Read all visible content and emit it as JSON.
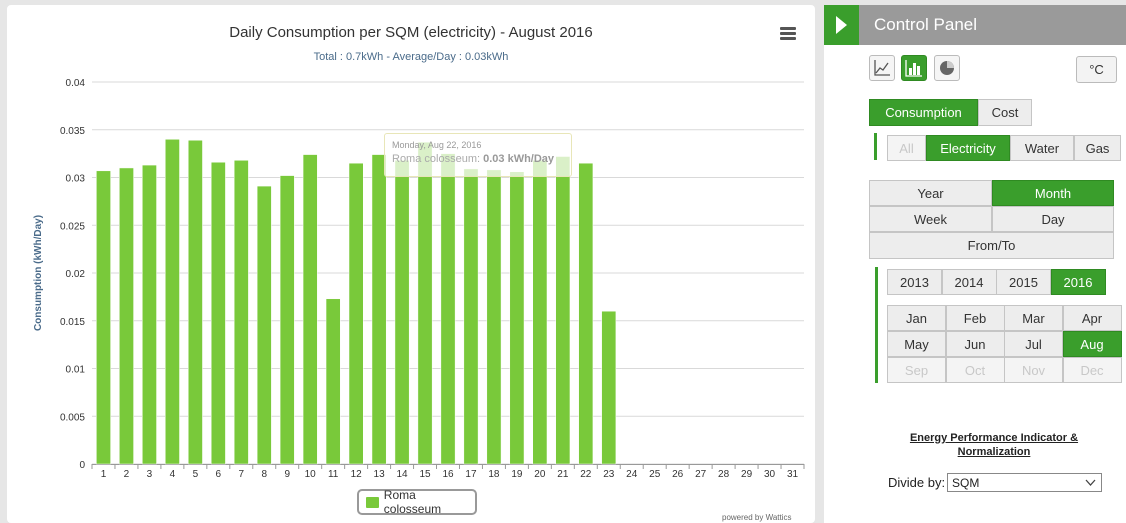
{
  "chart_data": {
    "type": "bar",
    "title": "Daily Consumption per SQM (electricity) - August 2016",
    "subtitle": "Total : 0.7kWh - Average/Day : 0.03kWh",
    "ylabel": "Consumption (kWh/Day)",
    "xlabel": "",
    "categories": [
      "1",
      "2",
      "3",
      "4",
      "5",
      "6",
      "7",
      "8",
      "9",
      "10",
      "11",
      "12",
      "13",
      "14",
      "15",
      "16",
      "17",
      "18",
      "19",
      "20",
      "21",
      "22",
      "23",
      "24",
      "25",
      "26",
      "27",
      "28",
      "29",
      "30",
      "31"
    ],
    "series": [
      {
        "name": "Roma colosseum",
        "values": [
          0.0307,
          0.031,
          0.0313,
          0.034,
          0.0339,
          0.0316,
          0.0318,
          0.0291,
          0.0302,
          0.0324,
          0.0173,
          0.0315,
          0.0324,
          0.0318,
          0.0337,
          0.0325,
          0.0309,
          0.0308,
          0.0306,
          0.0318,
          0.0322,
          0.0315,
          0.016,
          null,
          null,
          null,
          null,
          null,
          null,
          null,
          null
        ]
      }
    ],
    "ylim": [
      0,
      0.04
    ],
    "yticks": [
      "0",
      "0.005",
      "0.01",
      "0.015",
      "0.02",
      "0.025",
      "0.03",
      "0.035",
      "0.04"
    ],
    "grid": true,
    "legend": "bottom-center",
    "bar_color": "#79c93a",
    "tooltip": {
      "day_index": 21,
      "date": "Monday, Aug 22, 2016",
      "series": "Roma colosseum",
      "value": "0.03 kWh/Day"
    }
  },
  "credit": "powered by Wattics",
  "menu_icon": "hamburger-icon",
  "panel": {
    "title": "Control Panel",
    "chart_types": [
      "line-chart-icon",
      "bar-chart-icon",
      "pie-chart-icon"
    ],
    "unit": "°C",
    "metric_tabs": [
      "Consumption",
      "Cost"
    ],
    "energy_types": [
      "All",
      "Electricity",
      "Water",
      "Gas"
    ],
    "period": {
      "year": "Year",
      "month": "Month",
      "week": "Week",
      "day": "Day",
      "fromto": "From/To"
    },
    "years": [
      "2013",
      "2014",
      "2015",
      "2016"
    ],
    "months": [
      "Jan",
      "Feb",
      "Mar",
      "Apr",
      "May",
      "Jun",
      "Jul",
      "Aug",
      "Sep",
      "Oct",
      "Nov",
      "Dec"
    ],
    "epi_title": "Energy Performance Indicator & Normalization",
    "divide_label": "Divide by:",
    "divide_value": "SQM"
  }
}
